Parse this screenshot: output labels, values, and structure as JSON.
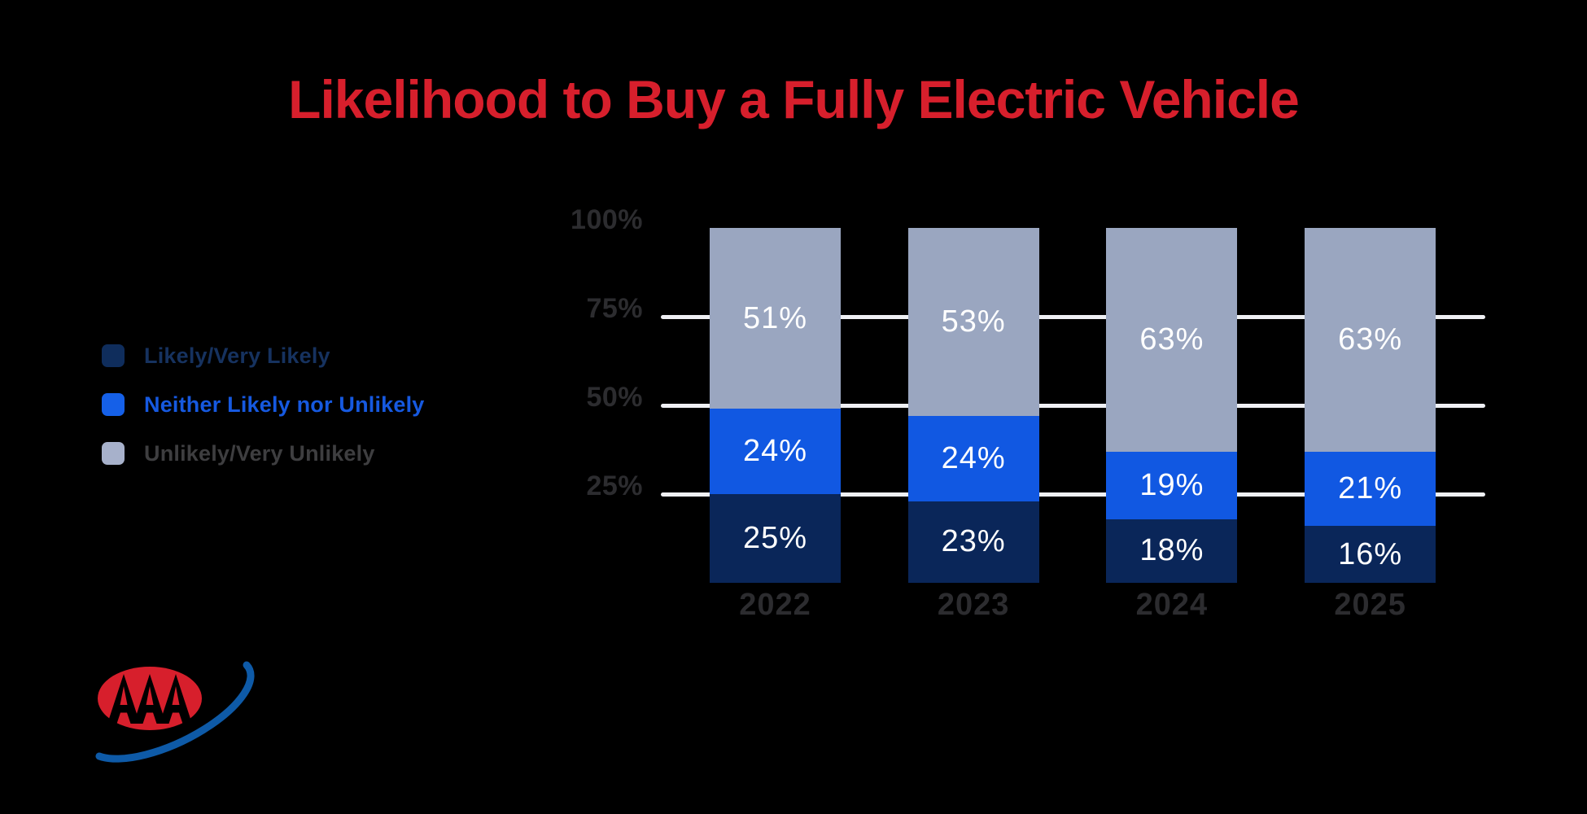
{
  "title": {
    "text": "Likelihood to Buy a Fully Electric Vehicle",
    "color": "#D71F2C"
  },
  "legend": {
    "items": [
      {
        "label": "Likely/Very Likely",
        "swatch_color": "#0F2D5C",
        "text_color": "#16325F"
      },
      {
        "label": "Neither Likely nor Unlikely",
        "swatch_color": "#1560E8",
        "text_color": "#1659E0"
      },
      {
        "label": "Unlikely/Very Unlikely",
        "swatch_color": "#A7B1CB",
        "text_color": "#3E3E40"
      }
    ]
  },
  "chart_data": {
    "type": "bar",
    "stacked": true,
    "title": "Likelihood to Buy a Fully Electric Vehicle",
    "categories": [
      "2022",
      "2023",
      "2024",
      "2025"
    ],
    "series": [
      {
        "name": "Likely/Very Likely",
        "color": "#0A2659",
        "values": [
          25,
          23,
          18,
          16
        ]
      },
      {
        "name": "Neither Likely nor Unlikely",
        "color": "#1158E2",
        "values": [
          24,
          24,
          19,
          21
        ]
      },
      {
        "name": "Unlikely/Very Unlikely",
        "color": "#9AA6C0",
        "values": [
          51,
          53,
          63,
          63
        ]
      }
    ],
    "value_suffix": "%",
    "y_ticks": [
      {
        "label": "100%",
        "value": 100
      },
      {
        "label": "75%",
        "value": 75
      },
      {
        "label": "50%",
        "value": 50
      },
      {
        "label": "25%",
        "value": 25
      }
    ],
    "ylim": [
      0,
      100
    ],
    "gridlines_at": [
      75,
      50,
      25
    ],
    "gridline_color": "#EFF0F4",
    "inside_label_color": "#FFFFFF",
    "axis_label_color": "#2C2C2F",
    "legend_position": "left",
    "xlabel": "",
    "ylabel": ""
  },
  "logo": {
    "name": "AAA",
    "letters": "AAA",
    "oval_color": "#D71F2C",
    "swoosh_color": "#0E5AA7",
    "letter_color": "#000000"
  }
}
